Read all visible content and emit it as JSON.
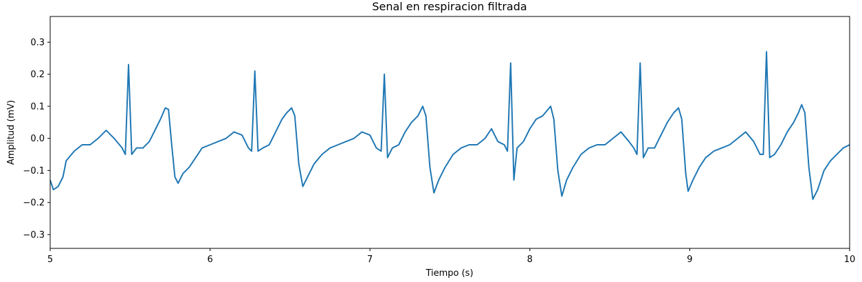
{
  "chart_data": {
    "type": "line",
    "title": "Senal en respiracion filtrada",
    "xlabel": "Tiempo (s)",
    "ylabel": "Amplitud (mV)",
    "color": "#1f77b4",
    "grid": false,
    "xlim": [
      5,
      10
    ],
    "ylim": [
      -0.343,
      0.38
    ],
    "xticks": [
      5,
      6,
      7,
      8,
      9,
      10
    ],
    "yticks": [
      {
        "value": -0.3,
        "label": "−0.3"
      },
      {
        "value": -0.2,
        "label": "−0.2"
      },
      {
        "value": -0.1,
        "label": "−0.1"
      },
      {
        "value": 0,
        "label": "0.0"
      },
      0.1,
      0.2,
      0.3
    ],
    "x": [
      5.0,
      5.02,
      5.05,
      5.08,
      5.1,
      5.15,
      5.2,
      5.25,
      5.3,
      5.35,
      5.4,
      5.45,
      5.47,
      5.49,
      5.51,
      5.54,
      5.58,
      5.62,
      5.66,
      5.69,
      5.72,
      5.74,
      5.76,
      5.78,
      5.8,
      5.83,
      5.87,
      5.91,
      5.95,
      6.0,
      6.05,
      6.1,
      6.15,
      6.2,
      6.24,
      6.26,
      6.28,
      6.3,
      6.33,
      6.37,
      6.41,
      6.45,
      6.48,
      6.51,
      6.53,
      6.555,
      6.58,
      6.61,
      6.65,
      6.7,
      6.75,
      6.8,
      6.85,
      6.9,
      6.95,
      7.0,
      7.04,
      7.07,
      7.09,
      7.11,
      7.14,
      7.18,
      7.22,
      7.26,
      7.3,
      7.33,
      7.35,
      7.375,
      7.4,
      7.43,
      7.47,
      7.52,
      7.57,
      7.62,
      7.67,
      7.72,
      7.76,
      7.8,
      7.84,
      7.86,
      7.88,
      7.9,
      7.92,
      7.96,
      8.0,
      8.04,
      8.08,
      8.13,
      8.15,
      8.175,
      8.2,
      8.23,
      8.27,
      8.32,
      8.37,
      8.42,
      8.47,
      8.52,
      8.57,
      8.62,
      8.65,
      8.67,
      8.69,
      8.71,
      8.74,
      8.78,
      8.82,
      8.86,
      8.9,
      8.93,
      8.95,
      8.975,
      8.99,
      9.02,
      9.06,
      9.1,
      9.15,
      9.2,
      9.25,
      9.3,
      9.35,
      9.4,
      9.44,
      9.46,
      9.48,
      9.5,
      9.53,
      9.57,
      9.61,
      9.65,
      9.68,
      9.7,
      9.72,
      9.745,
      9.77,
      9.8,
      9.84,
      9.88,
      9.92,
      9.96,
      10.0
    ],
    "values": [
      -0.13,
      -0.16,
      -0.15,
      -0.12,
      -0.07,
      -0.04,
      -0.02,
      -0.02,
      0.0,
      0.025,
      0.0,
      -0.03,
      -0.05,
      0.23,
      -0.05,
      -0.03,
      -0.03,
      -0.01,
      0.03,
      0.06,
      0.095,
      0.09,
      -0.02,
      -0.12,
      -0.14,
      -0.11,
      -0.09,
      -0.06,
      -0.03,
      -0.02,
      -0.01,
      0.0,
      0.02,
      0.01,
      -0.03,
      -0.04,
      0.21,
      -0.04,
      -0.03,
      -0.02,
      0.02,
      0.06,
      0.08,
      0.095,
      0.07,
      -0.08,
      -0.15,
      -0.12,
      -0.08,
      -0.05,
      -0.03,
      -0.02,
      -0.01,
      0.0,
      0.02,
      0.01,
      -0.03,
      -0.04,
      0.2,
      -0.06,
      -0.03,
      -0.02,
      0.02,
      0.05,
      0.07,
      0.1,
      0.07,
      -0.09,
      -0.17,
      -0.13,
      -0.09,
      -0.05,
      -0.03,
      -0.02,
      -0.02,
      0.0,
      0.03,
      -0.01,
      -0.02,
      -0.04,
      0.235,
      -0.13,
      -0.03,
      -0.01,
      0.03,
      0.06,
      0.07,
      0.1,
      0.06,
      -0.1,
      -0.18,
      -0.13,
      -0.09,
      -0.05,
      -0.03,
      -0.02,
      -0.02,
      0.0,
      0.02,
      -0.01,
      -0.03,
      -0.05,
      0.235,
      -0.06,
      -0.03,
      -0.03,
      0.01,
      0.05,
      0.08,
      0.095,
      0.06,
      -0.11,
      -0.165,
      -0.13,
      -0.09,
      -0.06,
      -0.04,
      -0.03,
      -0.02,
      0.0,
      0.02,
      -0.01,
      -0.05,
      -0.05,
      0.27,
      -0.06,
      -0.05,
      -0.02,
      0.02,
      0.05,
      0.08,
      0.105,
      0.08,
      -0.09,
      -0.19,
      -0.16,
      -0.1,
      -0.07,
      -0.05,
      -0.03,
      -0.02
    ]
  }
}
